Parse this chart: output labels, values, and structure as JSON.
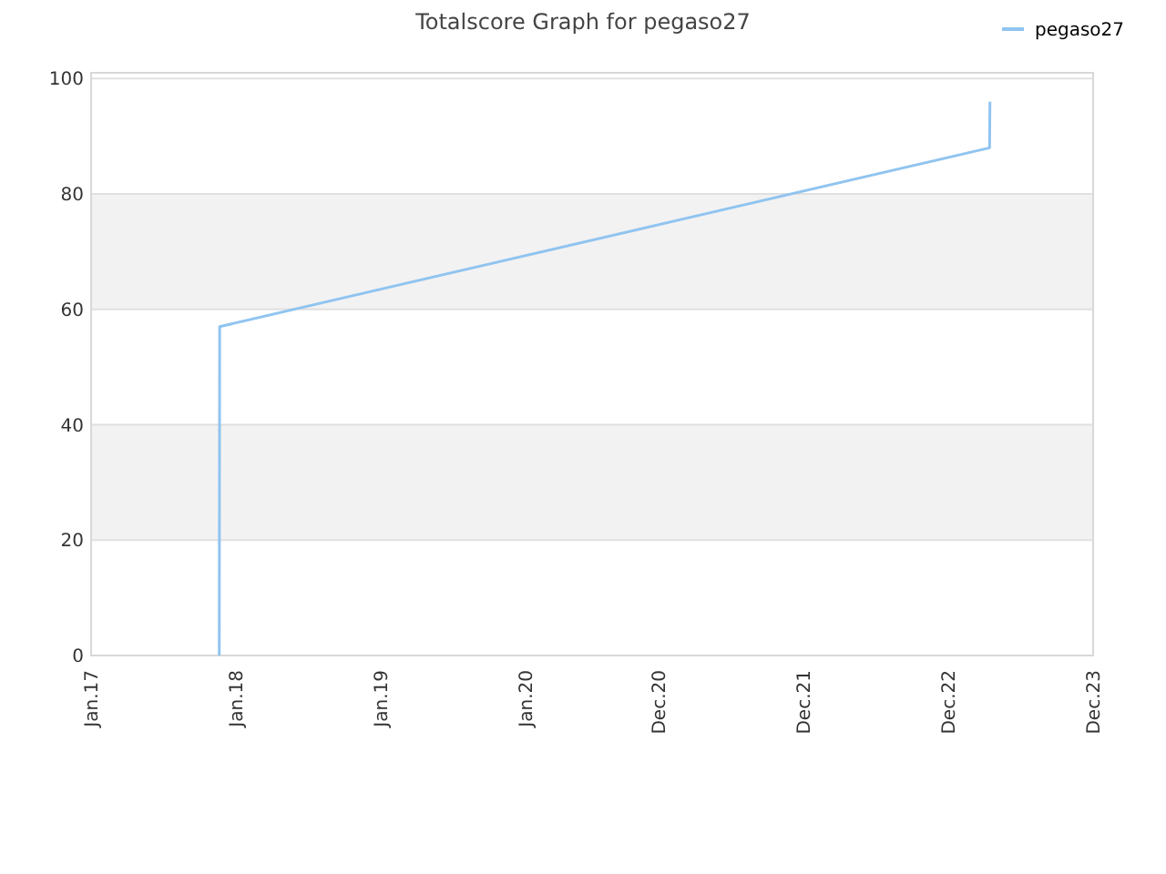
{
  "chart_data": {
    "type": "line",
    "title": "Totalscore Graph for pegaso27",
    "xlim": [
      "2017-01-01",
      "2023-12-01"
    ],
    "xticks": [
      {
        "value": "2017-01-01",
        "label": "Jan.17"
      },
      {
        "value": "2018-01-01",
        "label": "Jan.18"
      },
      {
        "value": "2019-01-01",
        "label": "Jan.19"
      },
      {
        "value": "2020-01-01",
        "label": "Jan.20"
      },
      {
        "value": "2020-12-01",
        "label": "Dec.20"
      },
      {
        "value": "2021-12-01",
        "label": "Dec.21"
      },
      {
        "value": "2022-12-01",
        "label": "Dec.22"
      },
      {
        "value": "2023-12-01",
        "label": "Dec.23"
      }
    ],
    "ylim": [
      0,
      101
    ],
    "yticks": [
      0,
      20,
      40,
      60,
      80,
      100
    ],
    "grid": "y",
    "bands": [
      {
        "axis": "y",
        "from": 20,
        "to": 40,
        "color": "#f2f2f2"
      },
      {
        "axis": "y",
        "from": 60,
        "to": 80,
        "color": "#f2f2f2"
      }
    ],
    "legend": "top right",
    "marker": "none",
    "line_style": "solid",
    "series": [
      {
        "name": "pegaso27",
        "color": "#90c4f0",
        "x": [
          "2017-11-20",
          "2017-11-21",
          "2023-03-15",
          "2023-03-16"
        ],
        "values": [
          0,
          57,
          88,
          96
        ]
      }
    ]
  }
}
